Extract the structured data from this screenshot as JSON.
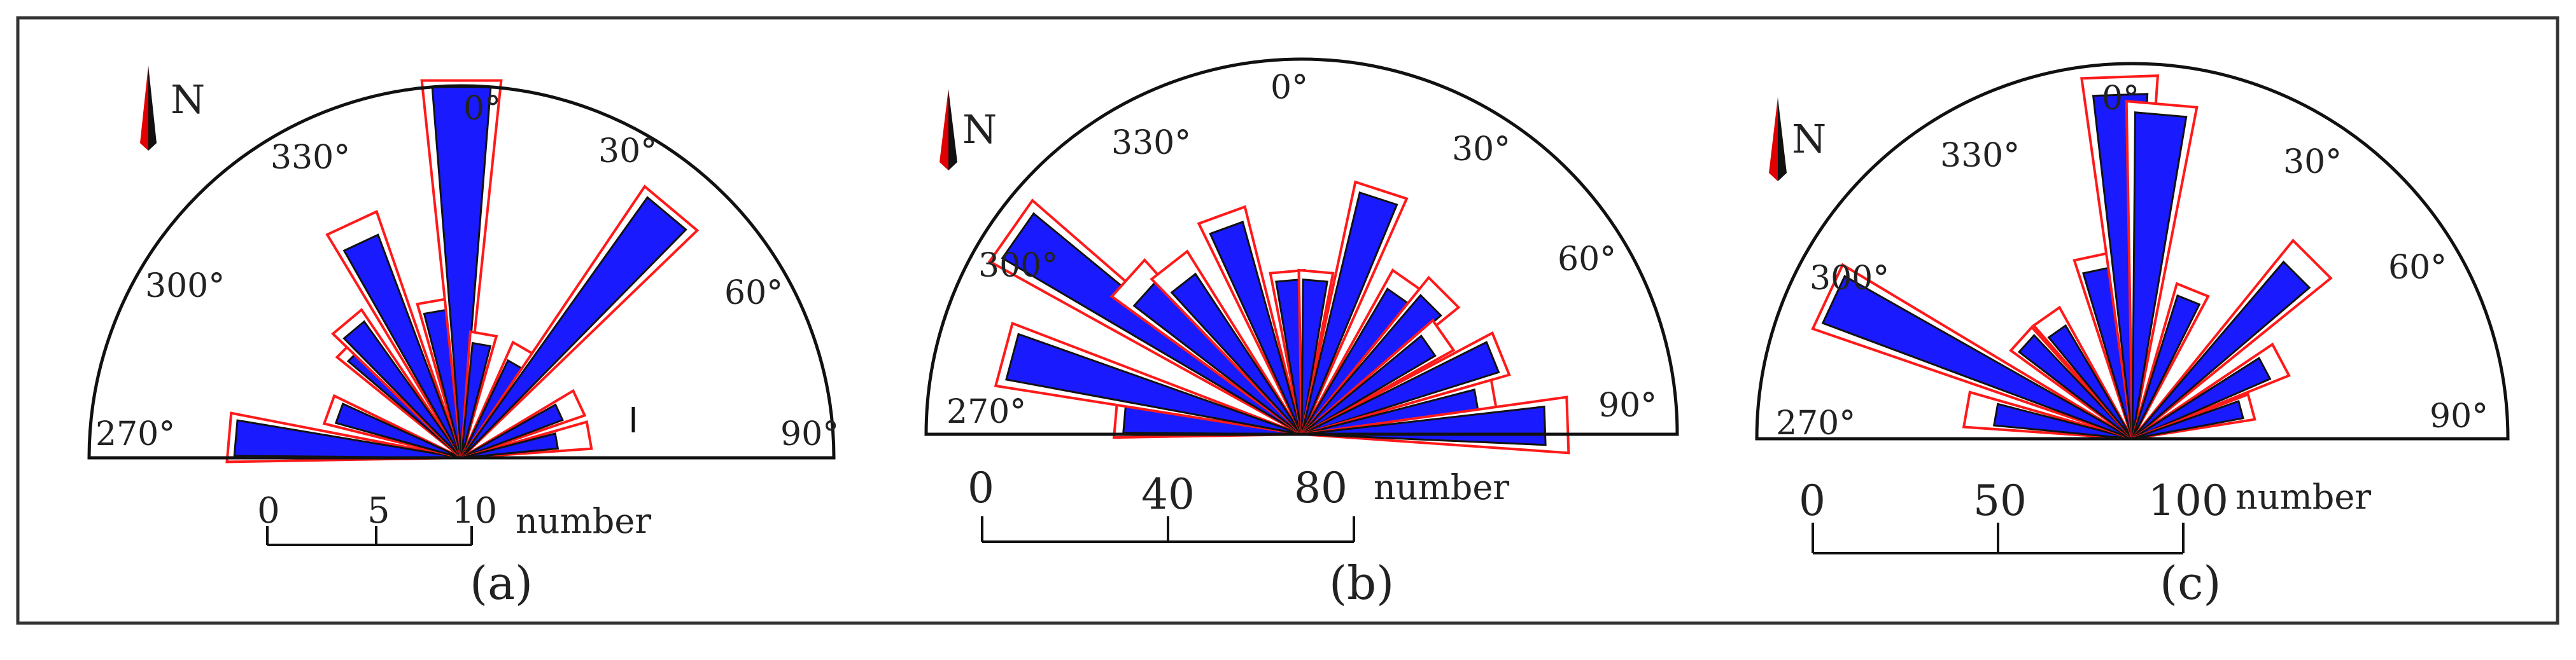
{
  "figure": {
    "panels": [
      {
        "id": "a",
        "caption": "(a)",
        "north": "N",
        "angle_labels": [
          "270°",
          "300°",
          "330°",
          "0°",
          "30°",
          "60°",
          "90°"
        ],
        "scale": {
          "ticks": [
            "0",
            "5",
            "10"
          ],
          "unit": "number",
          "max": 10
        }
      },
      {
        "id": "b",
        "caption": "(b)",
        "north": "N",
        "angle_labels": [
          "270°",
          "300°",
          "330°",
          "0°",
          "30°",
          "60°",
          "90°"
        ],
        "scale": {
          "ticks": [
            "0",
            "40",
            "80"
          ],
          "unit": "number",
          "max": 80
        }
      },
      {
        "id": "c",
        "caption": "(c)",
        "north": "N",
        "angle_labels": [
          "270°",
          "300°",
          "330°",
          "0°",
          "30°",
          "60°",
          "90°"
        ],
        "scale": {
          "ticks": [
            "0",
            "50",
            "100"
          ],
          "unit": "number",
          "max": 100
        }
      }
    ],
    "colors": {
      "fill": "#1a1aff",
      "outline": "#ff1a1a",
      "line": "#111111",
      "north_red": "#e00000",
      "north_black": "#111111"
    }
  },
  "chart_data": [
    {
      "type": "rose",
      "panel": "a",
      "angle_range_deg": [
        270,
        90
      ],
      "unit": "number",
      "scale_max": 10,
      "petals": [
        {
          "center_deg": 275,
          "value": 6.1,
          "outline_value": 6.3
        },
        {
          "center_deg": 290,
          "value": 3.5,
          "outline_value": 3.8
        },
        {
          "center_deg": 315,
          "value": 4.0,
          "outline_value": 4.3
        },
        {
          "center_deg": 320,
          "value": 4.5,
          "outline_value": 4.8
        },
        {
          "center_deg": 335,
          "value": 6.4,
          "outline_value": 7.0
        },
        {
          "center_deg": 350,
          "value": 4.0,
          "outline_value": 4.3
        },
        {
          "center_deg": 0,
          "value": 10.0,
          "outline_value": 10.2
        },
        {
          "center_deg": 10,
          "value": 3.1,
          "outline_value": 3.4
        },
        {
          "center_deg": 30,
          "value": 2.9,
          "outline_value": 3.4
        },
        {
          "center_deg": 40,
          "value": 8.6,
          "outline_value": 8.8
        },
        {
          "center_deg": 65,
          "value": 2.9,
          "outline_value": 3.5
        },
        {
          "center_deg": 80,
          "value": 2.6,
          "outline_value": 3.5
        }
      ]
    },
    {
      "type": "rose",
      "panel": "b",
      "angle_range_deg": [
        270,
        90
      ],
      "unit": "number",
      "scale_max": 80,
      "petals": [
        {
          "center_deg": 275,
          "value": 38,
          "outline_value": 40
        },
        {
          "center_deg": 285,
          "value": 64,
          "outline_value": 66
        },
        {
          "center_deg": 305,
          "value": 74,
          "outline_value": 76
        },
        {
          "center_deg": 312,
          "value": 45,
          "outline_value": 50
        },
        {
          "center_deg": 322,
          "value": 41,
          "outline_value": 46
        },
        {
          "center_deg": 340,
          "value": 47,
          "outline_value": 50
        },
        {
          "center_deg": 355,
          "value": 33,
          "outline_value": 35
        },
        {
          "center_deg": 5,
          "value": 33,
          "outline_value": 35
        },
        {
          "center_deg": 18,
          "value": 53,
          "outline_value": 55
        },
        {
          "center_deg": 35,
          "value": 36,
          "outline_value": 40
        },
        {
          "center_deg": 45,
          "value": 39,
          "outline_value": 43
        },
        {
          "center_deg": 55,
          "value": 33,
          "outline_value": 37
        },
        {
          "center_deg": 68,
          "value": 44,
          "outline_value": 46
        },
        {
          "center_deg": 80,
          "value": 38,
          "outline_value": 42
        },
        {
          "center_deg": 88,
          "value": 52,
          "outline_value": 57
        }
      ]
    },
    {
      "type": "rose",
      "panel": "c",
      "angle_range_deg": [
        270,
        90
      ],
      "unit": "number",
      "scale_max": 100,
      "petals": [
        {
          "center_deg": 280,
          "value": 37,
          "outline_value": 45
        },
        {
          "center_deg": 295,
          "value": 88,
          "outline_value": 90
        },
        {
          "center_deg": 312,
          "value": 38,
          "outline_value": 40
        },
        {
          "center_deg": 325,
          "value": 35,
          "outline_value": 40
        },
        {
          "center_deg": 348,
          "value": 46,
          "outline_value": 50
        },
        {
          "center_deg": 358,
          "value": 92,
          "outline_value": 97
        },
        {
          "center_deg": 5,
          "value": 87,
          "outline_value": 90
        },
        {
          "center_deg": 22,
          "value": 40,
          "outline_value": 43
        },
        {
          "center_deg": 45,
          "value": 62,
          "outline_value": 68
        },
        {
          "center_deg": 62,
          "value": 40,
          "outline_value": 45
        },
        {
          "center_deg": 75,
          "value": 30,
          "outline_value": 33
        }
      ]
    }
  ]
}
